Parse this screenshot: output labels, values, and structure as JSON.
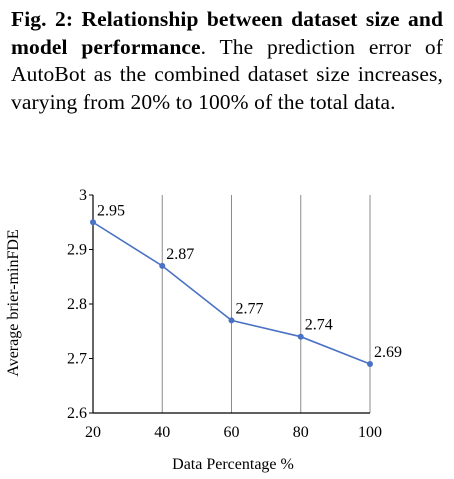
{
  "caption": {
    "label": "Fig. 2:",
    "title": "Relationship between dataset size and model performance",
    "body": ". The prediction error of AutoBot as the combined dataset size increases, varying from 20% to 100% of the total data."
  },
  "chart_data": {
    "type": "line",
    "title": "",
    "xlabel": "Data Percentage %",
    "ylabel": "Average brier-minFDE",
    "x": [
      20,
      40,
      60,
      80,
      100
    ],
    "series": [
      {
        "name": "",
        "values": [
          2.95,
          2.87,
          2.77,
          2.74,
          2.69
        ],
        "data_labels": [
          "2.95",
          "2.87",
          "2.77",
          "2.74",
          "2.69"
        ]
      }
    ],
    "xlim": [
      20,
      100
    ],
    "ylim": [
      2.6,
      3.0
    ],
    "x_ticks": [
      20,
      40,
      60,
      80,
      100
    ],
    "x_tick_labels": [
      "20",
      "40",
      "60",
      "80",
      "100"
    ],
    "y_ticks": [
      2.6,
      2.7,
      2.8,
      2.9,
      3.0
    ],
    "y_tick_labels": [
      "2.6",
      "2.7",
      "2.8",
      "2.9",
      "3"
    ],
    "grid": "vertical",
    "legend": "none",
    "colors": {
      "line": "#4a72c4",
      "marker": "#4a72c4",
      "grid": "#8c8c8c",
      "axis": "#000000"
    }
  }
}
